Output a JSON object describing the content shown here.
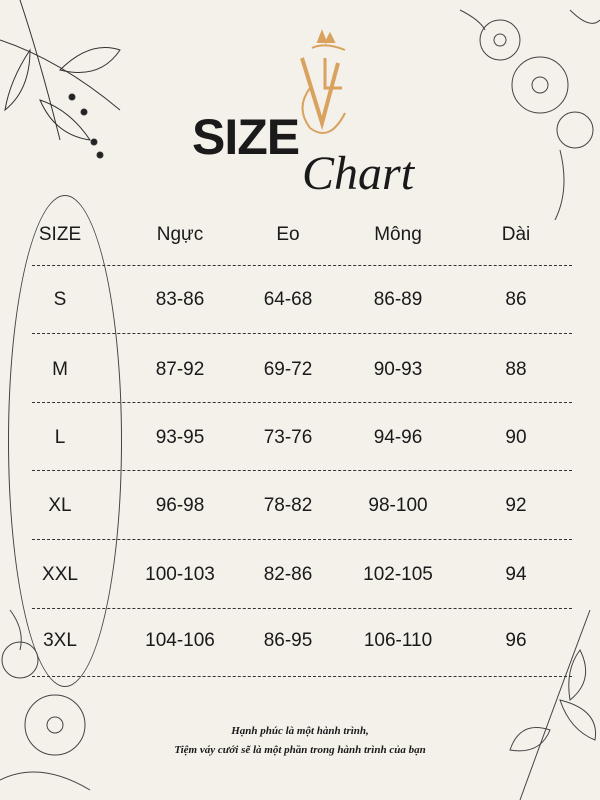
{
  "title": {
    "size": "SIZE",
    "chart": "Chart"
  },
  "logo": {
    "letters": "VLC",
    "color": "#d9a25e"
  },
  "table": {
    "headers": [
      "SIZE",
      "Ngực",
      "Eo",
      "Mông",
      "Dài"
    ],
    "rows": [
      [
        "S",
        "83-86",
        "64-68",
        "86-89",
        "86"
      ],
      [
        "M",
        "87-92",
        "69-72",
        "90-93",
        "88"
      ],
      [
        "L",
        "93-95",
        "73-76",
        "94-96",
        "90"
      ],
      [
        "XL",
        "96-98",
        "78-82",
        "98-100",
        "92"
      ],
      [
        "XXL",
        "100-103",
        "82-86",
        "102-105",
        "94"
      ],
      [
        "3XL",
        "104-106",
        "86-95",
        "106-110",
        "96"
      ]
    ]
  },
  "footer": {
    "line1": "Hạnh phúc là một hành trình,",
    "line2": "Tiệm váy cưới sẽ là một phần trong hành trình của bạn"
  }
}
